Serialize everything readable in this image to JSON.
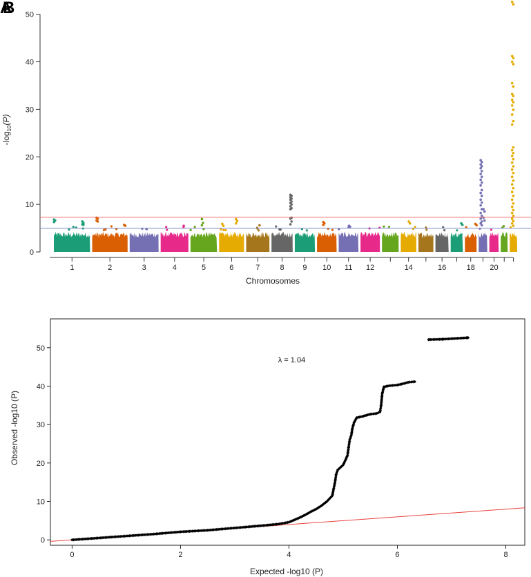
{
  "panel_labels": [
    "A",
    "B"
  ],
  "chart_data": [
    {
      "type": "manhattan",
      "xlabel": "Chromosomes",
      "ylabel_prefix": "-log",
      "ylabel_sub": "10",
      "ylabel_suffix": "(P)",
      "ylim": [
        0,
        53
      ],
      "yticks": [
        0,
        10,
        20,
        30,
        40,
        50
      ],
      "chromosomes": [
        "1",
        "2",
        "3",
        "4",
        "5",
        "6",
        "7",
        "8",
        "9",
        "10",
        "11",
        "12",
        "13",
        "14",
        "15",
        "16",
        "17",
        "18",
        "19",
        "20",
        "21",
        "22"
      ],
      "x_tick_labels": [
        {
          "chr": "1",
          "label": "1"
        },
        {
          "chr": "2",
          "label": "2"
        },
        {
          "chr": "3",
          "label": "3"
        },
        {
          "chr": "4",
          "label": "4"
        },
        {
          "chr": "5",
          "label": "5"
        },
        {
          "chr": "6",
          "label": "6"
        },
        {
          "chr": "7",
          "label": "7"
        },
        {
          "chr": "8",
          "label": "8"
        },
        {
          "chr": "9",
          "label": "9"
        },
        {
          "chr": "10",
          "label": "10"
        },
        {
          "chr": "11",
          "label": "11"
        },
        {
          "chr": "12",
          "label": "12"
        },
        {
          "chr": "14",
          "label": "14"
        },
        {
          "chr": "16",
          "label": "16"
        },
        {
          "chr": "18",
          "label": "18"
        },
        {
          "chr": "20",
          "label": "20"
        }
      ],
      "chromosome_sizes": [
        248,
        242,
        198,
        190,
        181,
        171,
        159,
        145,
        138,
        134,
        135,
        133,
        114,
        107,
        102,
        90,
        83,
        80,
        59,
        64,
        47,
        51
      ],
      "colors": [
        "#1b9e77",
        "#d95f02",
        "#7570b3",
        "#e7298a",
        "#66a61e",
        "#e6ab02",
        "#a6761d",
        "#666666"
      ],
      "suggestive_threshold": 5,
      "genomewide_threshold": 7.3,
      "suggestive_color": "#7b86c9",
      "genomewide_color": "#ef6b6b",
      "baseline_max": 4.2,
      "peaks": [
        {
          "chr": "1",
          "pos": 0.02,
          "values": [
            6.8,
            6.6,
            6.3
          ]
        },
        {
          "chr": "1",
          "pos": 0.8,
          "values": [
            6.4,
            6.1,
            5.8,
            5.7
          ]
        },
        {
          "chr": "2",
          "pos": 0.14,
          "values": [
            7.2,
            7.0,
            6.6,
            6.4
          ]
        },
        {
          "chr": "2",
          "pos": 0.92,
          "values": [
            5.7,
            5.5
          ]
        },
        {
          "chr": "4",
          "pos": 0.85,
          "values": [
            5.5
          ]
        },
        {
          "chr": "5",
          "pos": 0.45,
          "values": [
            6.9,
            6.1,
            5.6
          ]
        },
        {
          "chr": "6",
          "pos": 0.15,
          "values": [
            5.9,
            5.5
          ]
        },
        {
          "chr": "6",
          "pos": 0.7,
          "values": [
            6.9,
            6.5,
            6.0
          ]
        },
        {
          "chr": "7",
          "pos": 0.6,
          "values": [
            5.6
          ]
        },
        {
          "chr": "8",
          "pos": 0.92,
          "values": [
            12.0,
            11.8,
            11.5,
            11.2,
            11.0,
            10.6,
            10.3,
            10.0,
            9.6,
            9.2,
            9.0,
            7.2,
            7.0,
            6.4,
            5.8
          ]
        },
        {
          "chr": "10",
          "pos": 0.35,
          "values": [
            6.3,
            6.0,
            5.7
          ]
        },
        {
          "chr": "11",
          "pos": 0.55,
          "values": [
            5.5,
            5.3
          ]
        },
        {
          "chr": "14",
          "pos": 0.55,
          "values": [
            6.4,
            6.0
          ]
        },
        {
          "chr": "17",
          "pos": 0.92,
          "values": [
            6.0,
            5.7
          ]
        },
        {
          "chr": "18",
          "pos": 0.95,
          "values": [
            5.9,
            5.6
          ]
        },
        {
          "chr": "19",
          "pos": 0.3,
          "values": [
            19.3,
            18.9,
            18.4,
            18.0,
            17.6,
            17.0,
            16.4,
            15.8,
            15.2,
            14.6,
            14.0,
            13.0,
            12.4,
            11.8,
            11.0,
            10.4,
            9.8,
            9.0,
            8.2,
            7.6,
            7.0,
            6.4,
            6.0,
            5.6
          ]
        },
        {
          "chr": "19",
          "pos": 0.62,
          "values": [
            9.0,
            8.5,
            7.2,
            6.6
          ]
        },
        {
          "chr": "21",
          "pos": 0.5,
          "values": [
            5.4
          ]
        },
        {
          "chr": "22",
          "pos": 0.4,
          "values": [
            52.6,
            52.1,
            41.2,
            40.8,
            40.0,
            39.5,
            35.5,
            34.8,
            33.2,
            32.8,
            32.0,
            31.5,
            30.8,
            29.9,
            28.9,
            27.5,
            26.8,
            22.0,
            21.4,
            20.8,
            20.2,
            19.5,
            18.8,
            18.0,
            17.3,
            16.6,
            15.8,
            15.0,
            14.2,
            13.4,
            12.6,
            11.8,
            11.0,
            10.2,
            9.5,
            8.8,
            8.2,
            7.6,
            7.0,
            6.5,
            6.0,
            5.5
          ]
        }
      ]
    },
    {
      "type": "scatter",
      "title": "",
      "xlabel": "Expected -log10 (P)",
      "ylabel": "Observed -log10 (P)",
      "xlim": [
        -0.4,
        8.35
      ],
      "ylim": [
        -1.4,
        57.5
      ],
      "xticks": [
        0,
        2,
        4,
        6,
        8
      ],
      "yticks": [
        0,
        10,
        20,
        30,
        40,
        50
      ],
      "annotation": {
        "text": "λ = 1.04",
        "x": 3.8,
        "y": 46.2
      },
      "reference_line": {
        "slope": 1,
        "intercept": 0,
        "color": "#e8413c"
      },
      "points": [
        [
          0.0,
          0.0
        ],
        [
          0.5,
          0.5
        ],
        [
          1.0,
          1.0
        ],
        [
          1.5,
          1.5
        ],
        [
          2.0,
          2.1
        ],
        [
          2.5,
          2.5
        ],
        [
          3.0,
          3.1
        ],
        [
          3.5,
          3.7
        ],
        [
          3.8,
          4.1
        ],
        [
          4.0,
          4.6
        ],
        [
          4.1,
          5.2
        ],
        [
          4.2,
          5.8
        ],
        [
          4.3,
          6.5
        ],
        [
          4.4,
          7.3
        ],
        [
          4.5,
          8.0
        ],
        [
          4.6,
          8.9
        ],
        [
          4.7,
          10.0
        ],
        [
          4.8,
          11.5
        ],
        [
          4.82,
          13.0
        ],
        [
          4.85,
          15.0
        ],
        [
          4.87,
          17.0
        ],
        [
          4.9,
          18.2
        ],
        [
          5.0,
          19.5
        ],
        [
          5.05,
          21.0
        ],
        [
          5.08,
          22.0
        ],
        [
          5.1,
          24.0
        ],
        [
          5.12,
          26.0
        ],
        [
          5.15,
          27.2
        ],
        [
          5.17,
          29.0
        ],
        [
          5.2,
          30.5
        ],
        [
          5.25,
          31.8
        ],
        [
          5.35,
          32.1
        ],
        [
          5.5,
          32.7
        ],
        [
          5.62,
          32.9
        ],
        [
          5.68,
          33.3
        ],
        [
          5.7,
          35.0
        ],
        [
          5.72,
          38.0
        ],
        [
          5.75,
          39.8
        ],
        [
          5.85,
          40.1
        ],
        [
          6.0,
          40.3
        ],
        [
          6.1,
          40.6
        ],
        [
          6.2,
          41.0
        ],
        [
          6.35,
          41.2
        ],
        [
          6.58,
          52.1
        ],
        [
          6.83,
          52.2
        ],
        [
          7.3,
          52.6
        ]
      ]
    }
  ]
}
